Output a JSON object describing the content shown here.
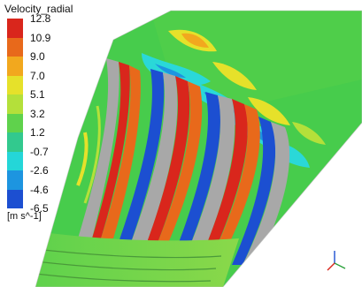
{
  "contour": {
    "variable": "Velocity_radial",
    "unit": "[m s^-1]",
    "ticks": [
      "12.8",
      "10.9",
      "9.0",
      "7.0",
      "5.1",
      "3.2",
      "1.2",
      "-0.7",
      "-2.6",
      "-4.6",
      "-6.5"
    ],
    "colormap": [
      "#d9261c",
      "#e8691b",
      "#f2a81e",
      "#e6e12a",
      "#b4e03a",
      "#5fd24c",
      "#32c98e",
      "#24d6d8",
      "#1d95e0",
      "#1c4fd1"
    ]
  },
  "axis_triad": {
    "label": "axis-triad"
  }
}
